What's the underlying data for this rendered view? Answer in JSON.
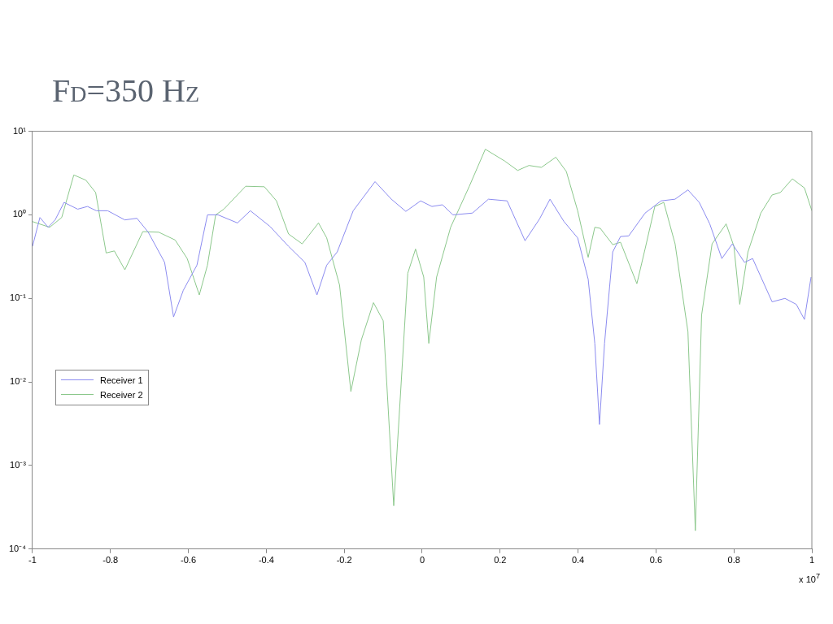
{
  "chart_data": {
    "type": "line",
    "title": "Fd=350 Hz",
    "annotations": [
      "x 10$^{7}$"
    ],
    "log": "y",
    "grid": false,
    "legend": "left",
    "marker": "none",
    "line_style": "solid",
    "xlim": [
      -1,
      1
    ],
    "xticks": [
      -1,
      -0.8,
      -0.6,
      -0.4,
      -0.2,
      0,
      0.2,
      0.4,
      0.6,
      0.8,
      1
    ],
    "ylim": [
      0.0001,
      10
    ],
    "yticks": [
      {
        "value": 0.0001,
        "label": "10⁻⁴"
      },
      {
        "value": 0.001,
        "label": "10⁻³"
      },
      {
        "value": 0.01,
        "label": "10⁻²"
      },
      {
        "value": 0.1,
        "label": "10⁻¹"
      },
      {
        "value": 1,
        "label": "10⁰"
      },
      {
        "value": 10,
        "label": "10¹"
      }
    ],
    "series": [
      {
        "name": "Receiver 1",
        "color": "#8c8cf0",
        "x": [
          -1,
          -0.981,
          -0.96,
          -0.942,
          -0.919,
          -0.884,
          -0.859,
          -0.836,
          -0.807,
          -0.763,
          -0.732,
          -0.703,
          -0.661,
          -0.638,
          -0.613,
          -0.578,
          -0.551,
          -0.524,
          -0.474,
          -0.441,
          -0.391,
          -0.343,
          -0.301,
          -0.27,
          -0.245,
          -0.218,
          -0.177,
          -0.121,
          -0.079,
          -0.042,
          -0.004,
          0.025,
          0.052,
          0.079,
          0.129,
          0.17,
          0.218,
          0.264,
          0.301,
          0.328,
          0.364,
          0.399,
          0.426,
          0.443,
          0.455,
          0.468,
          0.489,
          0.509,
          0.53,
          0.572,
          0.613,
          0.649,
          0.682,
          0.711,
          0.738,
          0.769,
          0.796,
          0.827,
          0.848,
          0.898,
          0.931,
          0.96,
          0.981,
          0.998
        ],
        "values": [
          0.42,
          0.93,
          0.71,
          0.87,
          1.41,
          1.17,
          1.26,
          1.12,
          1.12,
          0.87,
          0.91,
          0.62,
          0.27,
          0.06,
          0.125,
          0.25,
          1.0,
          1.0,
          0.8,
          1.12,
          0.73,
          0.42,
          0.27,
          0.11,
          0.25,
          0.36,
          1.12,
          2.5,
          1.54,
          1.1,
          1.47,
          1.26,
          1.32,
          1.0,
          1.05,
          1.54,
          1.47,
          0.49,
          0.89,
          1.54,
          0.83,
          0.53,
          0.17,
          0.029,
          0.0031,
          0.029,
          0.36,
          0.55,
          0.56,
          1.05,
          1.47,
          1.54,
          1.99,
          1.41,
          0.78,
          0.3,
          0.45,
          0.27,
          0.3,
          0.091,
          0.1,
          0.085,
          0.056,
          0.18
        ]
      },
      {
        "name": "Receiver 2",
        "color": "#8cc88c",
        "x": [
          -1,
          -0.956,
          -0.925,
          -0.894,
          -0.863,
          -0.838,
          -0.811,
          -0.79,
          -0.763,
          -0.717,
          -0.676,
          -0.634,
          -0.603,
          -0.572,
          -0.551,
          -0.53,
          -0.509,
          -0.453,
          -0.405,
          -0.374,
          -0.343,
          -0.308,
          -0.266,
          -0.245,
          -0.212,
          -0.183,
          -0.156,
          -0.125,
          -0.1,
          -0.073,
          -0.052,
          -0.037,
          -0.017,
          0.004,
          0.017,
          0.037,
          0.073,
          0.121,
          0.162,
          0.212,
          0.245,
          0.274,
          0.306,
          0.343,
          0.37,
          0.399,
          0.426,
          0.443,
          0.457,
          0.489,
          0.509,
          0.551,
          0.572,
          0.597,
          0.62,
          0.649,
          0.682,
          0.701,
          0.717,
          0.744,
          0.78,
          0.8,
          0.815,
          0.836,
          0.869,
          0.898,
          0.919,
          0.95,
          0.981,
          1
        ],
        "values": [
          0.83,
          0.71,
          0.93,
          3.0,
          2.6,
          1.85,
          0.35,
          0.37,
          0.22,
          0.63,
          0.62,
          0.5,
          0.3,
          0.11,
          0.25,
          1.0,
          1.17,
          2.2,
          2.17,
          1.47,
          0.59,
          0.45,
          0.8,
          0.53,
          0.144,
          0.0077,
          0.032,
          0.089,
          0.054,
          0.00033,
          0.0136,
          0.2,
          0.39,
          0.18,
          0.029,
          0.18,
          0.71,
          2.2,
          6.1,
          4.4,
          3.4,
          3.9,
          3.7,
          4.9,
          3.3,
          1.12,
          0.31,
          0.71,
          0.69,
          0.44,
          0.47,
          0.15,
          0.39,
          1.26,
          1.41,
          0.45,
          0.04,
          0.000166,
          0.063,
          0.45,
          0.78,
          0.42,
          0.085,
          0.36,
          1.05,
          1.73,
          1.85,
          2.7,
          2.1,
          1.12
        ]
      }
    ]
  }
}
